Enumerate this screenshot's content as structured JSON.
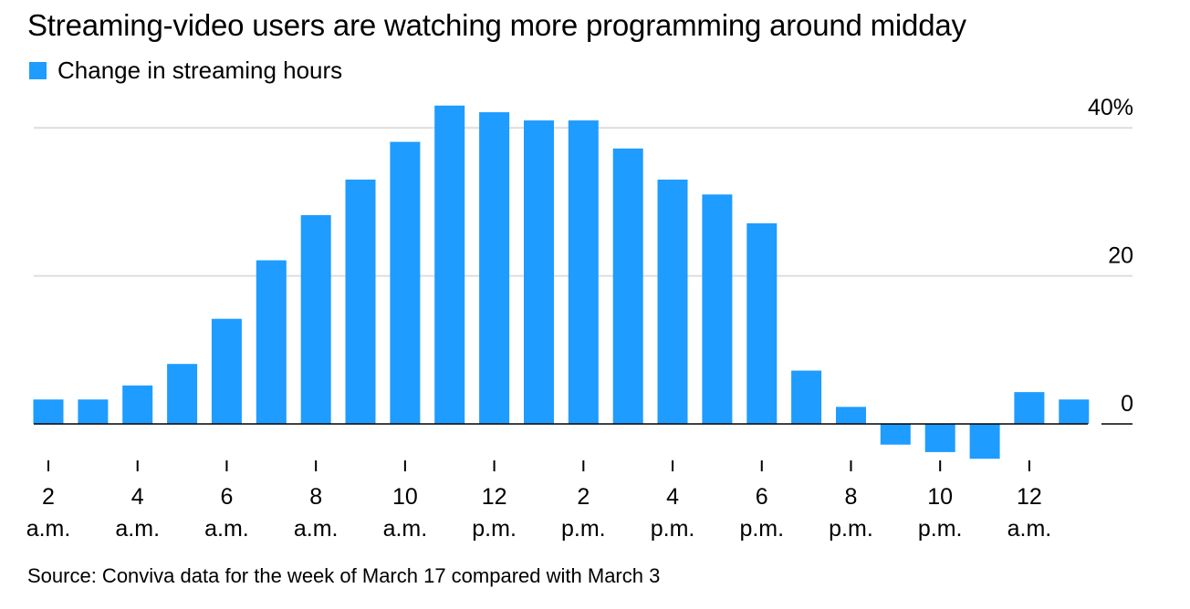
{
  "title": "Streaming-video users are watching more programming around midday",
  "legend": {
    "label": "Change in streaming hours"
  },
  "source": "Source: Conviva data for the week of March 17 compared with March 3",
  "colors": {
    "bar": "#1e9cff",
    "grid": "#dddddd",
    "axis": "#000000"
  },
  "chart_data": {
    "type": "bar",
    "series": [
      {
        "name": "Change in streaming hours",
        "values": [
          3.3,
          3.3,
          5.2,
          8.1,
          14.2,
          22.1,
          28.2,
          33.0,
          38.1,
          43.0,
          42.1,
          41.0,
          41.0,
          37.2,
          33.0,
          31.0,
          27.1,
          7.2,
          2.3,
          -2.8,
          -3.8,
          -4.7,
          4.3,
          3.3
        ]
      }
    ],
    "categories": [
      "1",
      "2",
      "3",
      "4",
      "5",
      "6",
      "7",
      "8",
      "9",
      "10",
      "11",
      "12",
      "13",
      "14",
      "15",
      "16",
      "17",
      "18",
      "19",
      "20",
      "21",
      "22",
      "23",
      "24"
    ],
    "x_ticks": [
      {
        "index": 1,
        "line1": "2",
        "line2": "a.m."
      },
      {
        "index": 3,
        "line1": "4",
        "line2": "a.m."
      },
      {
        "index": 5,
        "line1": "6",
        "line2": "a.m."
      },
      {
        "index": 7,
        "line1": "8",
        "line2": "a.m."
      },
      {
        "index": 9,
        "line1": "10",
        "line2": "a.m."
      },
      {
        "index": 11,
        "line1": "12",
        "line2": "p.m."
      },
      {
        "index": 13,
        "line1": "2",
        "line2": "p.m."
      },
      {
        "index": 15,
        "line1": "4",
        "line2": "p.m."
      },
      {
        "index": 17,
        "line1": "6",
        "line2": "p.m."
      },
      {
        "index": 19,
        "line1": "8",
        "line2": "p.m."
      },
      {
        "index": 21,
        "line1": "10",
        "line2": "p.m."
      },
      {
        "index": 23,
        "line1": "12",
        "line2": "a.m."
      }
    ],
    "y_ticks": [
      {
        "value": 40,
        "label": "40%"
      },
      {
        "value": 20,
        "label": "20"
      },
      {
        "value": 0,
        "label": "0"
      }
    ],
    "ylim": [
      -6,
      45
    ],
    "grid": true,
    "yaxis_position": "right",
    "legend_position": "top-left"
  }
}
